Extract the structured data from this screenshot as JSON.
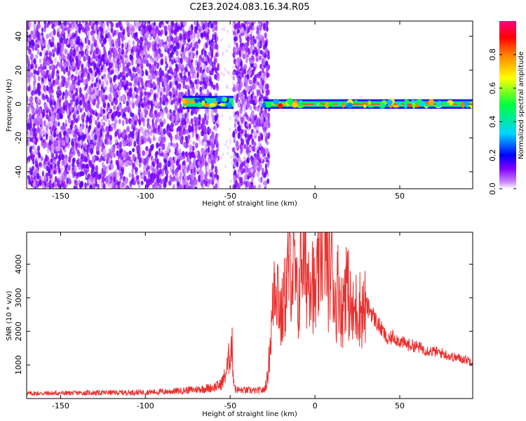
{
  "figure": {
    "title": "C2E3.2024.083.16.34.R05",
    "colors": {
      "snr_line": "#e8302e",
      "spectrum_noise": "#7a12f0",
      "background": "#ffffff"
    }
  },
  "chart_data": [
    {
      "type": "heatmap",
      "xlabel": "Height of straight line (km)",
      "ylabel": "Frequency (Hz)",
      "xlim": [
        -170,
        93
      ],
      "ylim": [
        -50,
        49
      ],
      "x_ticks": [
        -150,
        -100,
        -50,
        0,
        50
      ],
      "y_ticks": [
        -40,
        -20,
        0,
        20,
        40
      ],
      "x_tick_labels": [
        "-150",
        "-100",
        "-50",
        "0",
        "50"
      ],
      "y_tick_labels": [
        "-40",
        "-20",
        "0",
        "20",
        "40"
      ],
      "colorbar": {
        "label": "Normalized spectral amplitude",
        "range": [
          0,
          1
        ],
        "ticks": [
          0.0,
          0.2,
          0.4,
          0.6,
          0.8
        ],
        "tick_labels": [
          "0.0",
          "0.2",
          "0.4",
          "0.6",
          "0.8"
        ],
        "colormap": [
          "#ffffff",
          "#cc88ff",
          "#8000ff",
          "#0000ff",
          "#00d5ff",
          "#00ff40",
          "#ffff00",
          "#ff8000",
          "#ff0000",
          "#ff0080"
        ]
      },
      "regions": [
        {
          "name": "broadband noise",
          "x_range": [
            -170,
            -57
          ],
          "freq_range": [
            -50,
            49
          ],
          "amplitude": 0.1
        },
        {
          "name": "noise gap",
          "x_range": [
            -57,
            -48
          ],
          "freq_range": [
            -50,
            49
          ],
          "amplitude": 0.02
        },
        {
          "name": "broadband noise",
          "x_range": [
            -48,
            -27
          ],
          "freq_range": [
            -50,
            49
          ],
          "amplitude": 0.1
        },
        {
          "name": "weak doppler trace",
          "x_range": [
            -78,
            -48
          ],
          "freq_range": [
            -2,
            4
          ],
          "amplitude": 0.5
        },
        {
          "name": "strong doppler trace",
          "x_range": [
            -30,
            93
          ],
          "freq_range": [
            -2,
            2
          ],
          "amplitude": 0.85
        }
      ]
    },
    {
      "type": "line",
      "xlabel": "Height of straight line (km)",
      "ylabel": "SNR (10 * v/v)",
      "xlim": [
        -170,
        93
      ],
      "ylim": [
        0,
        4950
      ],
      "x_ticks": [
        -150,
        -100,
        -50,
        0,
        50
      ],
      "y_ticks": [
        1000,
        2000,
        3000,
        4000
      ],
      "x_tick_labels": [
        "-150",
        "-100",
        "-50",
        "0",
        "50"
      ],
      "y_tick_labels": [
        "1000",
        "2000",
        "3000",
        "4000"
      ],
      "series": [
        {
          "x": [
            -170,
            -150,
            -130,
            -110,
            -90,
            -80,
            -70,
            -65,
            -60,
            -56,
            -54,
            -52,
            -50,
            -49,
            -48,
            -47,
            -45,
            -40,
            -35,
            -30,
            -28,
            -26,
            -25,
            -24,
            -22,
            -20,
            -17,
            -15,
            -12,
            -10,
            -8,
            -5,
            -2,
            0,
            2,
            4,
            6,
            8,
            10,
            12,
            14,
            16,
            18,
            20,
            22,
            25,
            28,
            30,
            33,
            36,
            40,
            43,
            46,
            50,
            55,
            60,
            65,
            70,
            75,
            80,
            85,
            90,
            93
          ],
          "y": [
            150,
            160,
            170,
            180,
            200,
            230,
            270,
            300,
            330,
            400,
            550,
            850,
            1400,
            1650,
            600,
            280,
            250,
            240,
            230,
            250,
            600,
            1900,
            2500,
            3700,
            3400,
            2300,
            3300,
            4100,
            3700,
            2600,
            4500,
            3600,
            4000,
            2800,
            3700,
            4700,
            4900,
            3500,
            4100,
            2800,
            3500,
            2400,
            3700,
            3000,
            2400,
            2800,
            2600,
            2750,
            2600,
            2300,
            2000,
            1700,
            1850,
            1700,
            1600,
            1550,
            1450,
            1400,
            1350,
            1250,
            1200,
            1150,
            1100
          ]
        }
      ]
    }
  ]
}
